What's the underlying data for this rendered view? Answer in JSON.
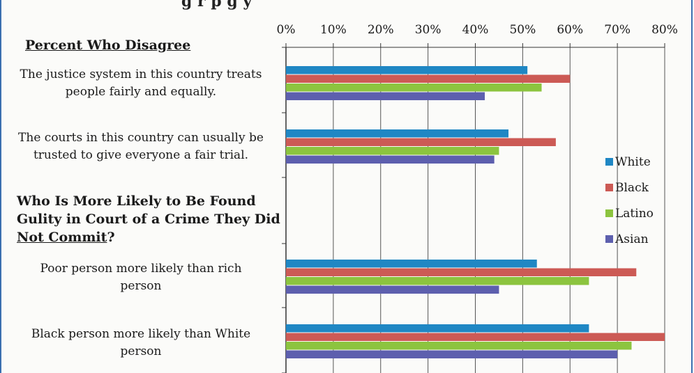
{
  "title_partial": "g    r   p                               g    y   ",
  "group_headings": {
    "disagree": "Percent Who Disagree",
    "guilty_line1": "Who Is More Likely to Be Found",
    "guilty_line2": "Gulity in Court of a Crime They Did",
    "guilty_line3": "Not Commit",
    "guilty_qmark": "?"
  },
  "chart_data": {
    "type": "bar",
    "orientation": "horizontal",
    "categories": [
      "The justice system in this country treats people fairly and equally.",
      "The courts in this country can usually be trusted to give everyone a fair trial.",
      "Poor person more likely than rich person",
      "Black person more likely than White person"
    ],
    "category_lines": [
      [
        "The justice system in this country treats",
        "people fairly and equally."
      ],
      [
        "The courts in this country can usually be",
        "trusted to give everyone a fair trial."
      ],
      [
        "Poor person more likely than rich",
        "person"
      ],
      [
        "Black person more likely than White",
        "person"
      ]
    ],
    "series": [
      {
        "name": "White",
        "color": "#1f87c4",
        "values": [
          51,
          47,
          53,
          64
        ]
      },
      {
        "name": "Black",
        "color": "#cc5a55",
        "values": [
          60,
          57,
          74,
          80
        ]
      },
      {
        "name": "Latino",
        "color": "#8cc43f",
        "values": [
          54,
          45,
          64,
          73
        ]
      },
      {
        "name": "Asian",
        "color": "#5d5fae",
        "values": [
          42,
          44,
          45,
          70
        ]
      }
    ],
    "xlim": [
      0,
      80
    ],
    "ticks": [
      "0%",
      "10%",
      "20%",
      "30%",
      "40%",
      "50%",
      "60%",
      "70%",
      "80%"
    ],
    "grid": true,
    "legend_position": "right"
  }
}
